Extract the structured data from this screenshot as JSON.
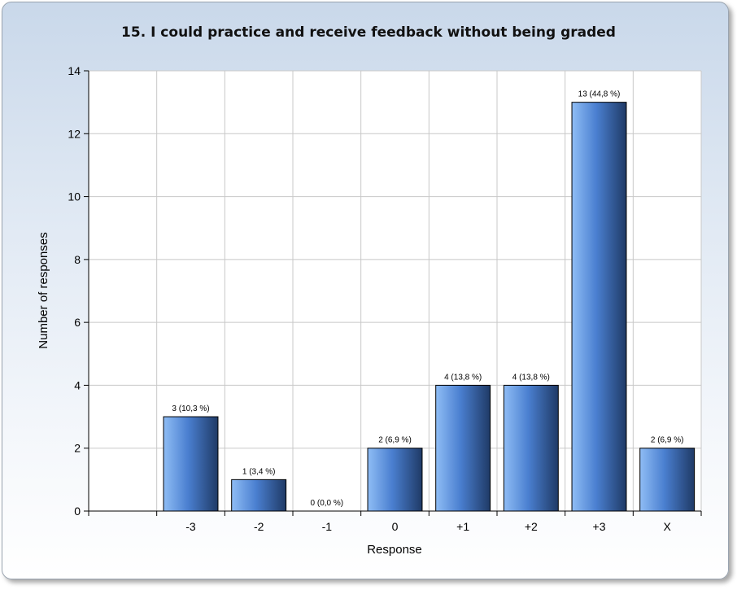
{
  "chart_data": {
    "type": "bar",
    "title": "15. I could practice and receive feedback without being graded",
    "xlabel": "Response",
    "ylabel": "Number of responses",
    "categories": [
      "-3",
      "-2",
      "-1",
      "0",
      "+1",
      "+2",
      "+3",
      "X"
    ],
    "values": [
      3,
      1,
      0,
      2,
      4,
      4,
      13,
      2
    ],
    "data_labels": [
      "3 (10,3 %)",
      "1 (3,4 %)",
      "0 (0,0 %)",
      "2 (6,9 %)",
      "4 (13,8 %)",
      "4 (13,8 %)",
      "13 (44,8 %)",
      "2 (6,9 %)"
    ],
    "ylim": [
      0,
      14
    ],
    "yticks": [
      "0",
      "2",
      "4",
      "6",
      "8",
      "10",
      "12",
      "14"
    ],
    "grid": true,
    "legend": "none",
    "colors": {
      "bar_light": "#8fbdf5",
      "bar_mid": "#4a7fd0",
      "bar_dark": "#1f3a66",
      "grid": "#c8c8c8",
      "plot_bg": "#ffffff"
    }
  }
}
